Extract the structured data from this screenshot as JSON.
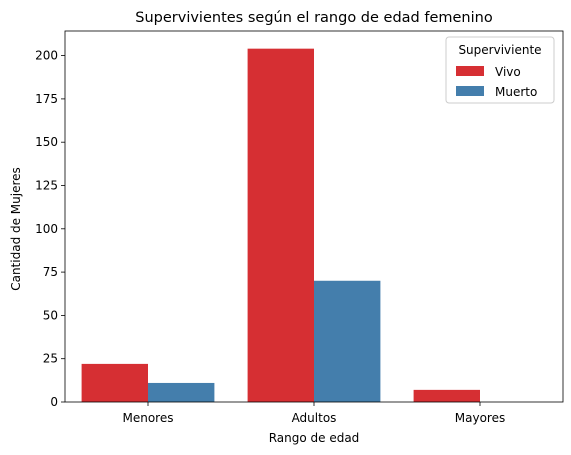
{
  "chart_data": {
    "type": "bar",
    "title": "Supervivientes según el rango de edad femenino",
    "xlabel": "Rango de edad",
    "ylabel": "Cantidad de Mujeres",
    "categories": [
      "Menores",
      "Adultos",
      "Mayores"
    ],
    "series": [
      {
        "name": "Vivo",
        "values": [
          22,
          204,
          7
        ],
        "color": "#d62f33"
      },
      {
        "name": "Muerto",
        "values": [
          11,
          70,
          0
        ],
        "color": "#447eac"
      }
    ],
    "ylim": [
      0,
      214.2
    ],
    "yticks": [
      0,
      25,
      50,
      75,
      100,
      125,
      150,
      175,
      200
    ],
    "legend": {
      "title": "Superviviente",
      "placement": "top-right"
    },
    "grid": false
  }
}
